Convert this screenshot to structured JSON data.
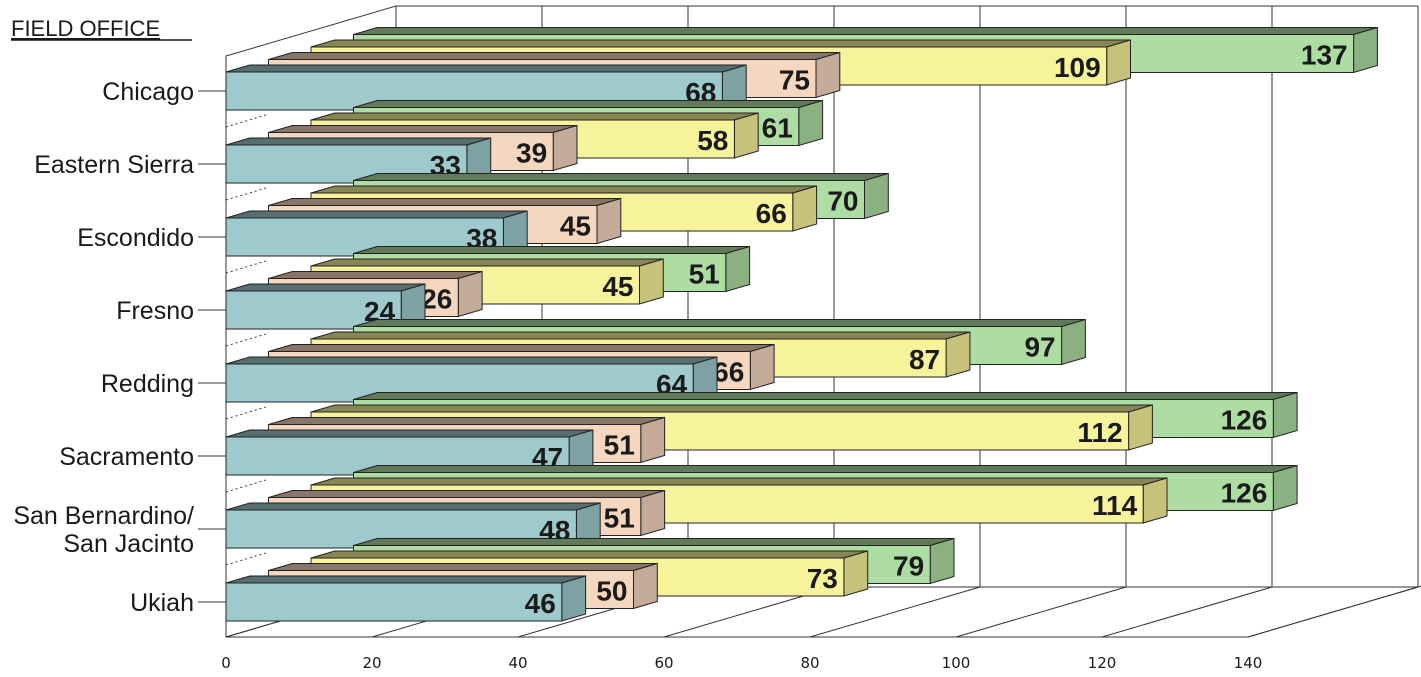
{
  "chart_data": {
    "type": "bar",
    "orientation": "horizontal",
    "style": "3d",
    "title": "FIELD OFFICE",
    "categories": [
      "Chicago",
      "Eastern Sierra",
      "Escondido",
      "Fresno",
      "Redding",
      "Sacramento",
      "San Bernardino/\nSan Jacinto",
      "Ukiah"
    ],
    "series": [
      {
        "values": [
          68,
          33,
          38,
          24,
          64,
          47,
          48,
          46
        ],
        "color": "#9ec9cd"
      },
      {
        "values": [
          75,
          39,
          45,
          26,
          66,
          51,
          51,
          50
        ],
        "color": "#f5d6bf"
      },
      {
        "values": [
          109,
          58,
          66,
          45,
          87,
          112,
          114,
          73
        ],
        "color": "#f7f39a"
      },
      {
        "values": [
          137,
          61,
          70,
          51,
          97,
          126,
          126,
          79
        ],
        "color": "#aedda4"
      }
    ],
    "xlim": [
      0,
      140
    ],
    "xticks": [
      0,
      20,
      40,
      60,
      80,
      100,
      120,
      140
    ],
    "grid": true,
    "legend": "none"
  }
}
